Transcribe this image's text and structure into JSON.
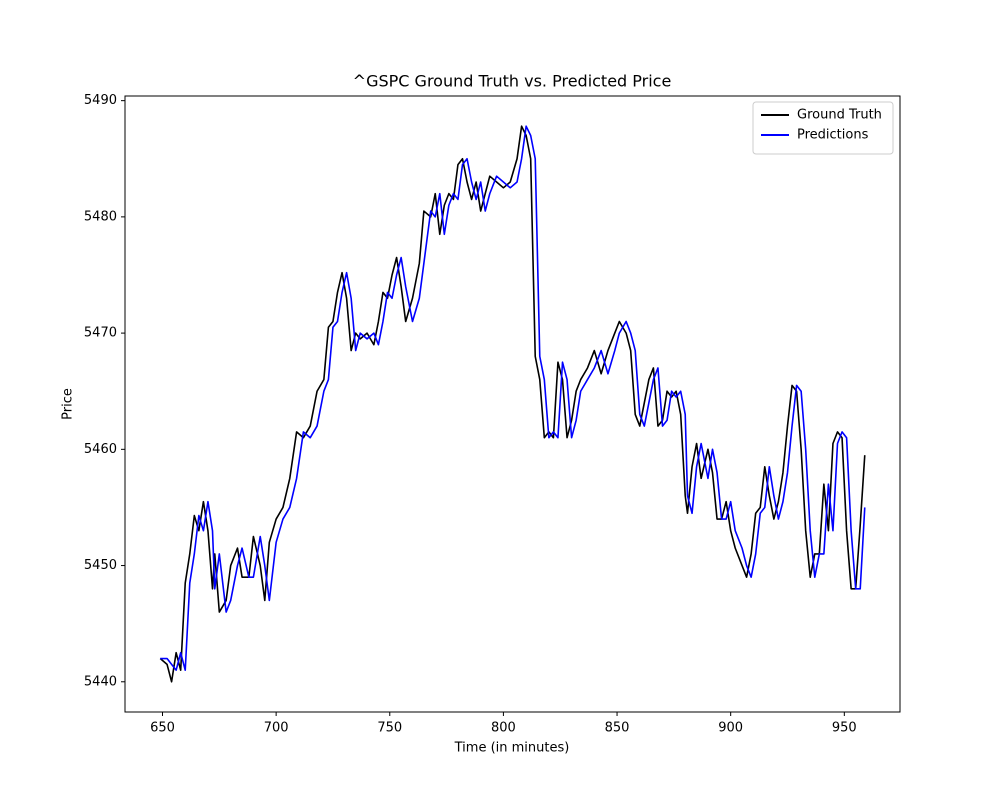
{
  "chart_data": {
    "type": "line",
    "title": "^GSPC Ground Truth vs. Predicted Price",
    "x_label": "Time (in minutes)",
    "y_label": "Price",
    "x": [
      649,
      652,
      654,
      656,
      658,
      660,
      662,
      664,
      666,
      668,
      670,
      672,
      673,
      675,
      678,
      680,
      683,
      685,
      688,
      690,
      693,
      695,
      697,
      700,
      703,
      706,
      709,
      712,
      715,
      718,
      721,
      723,
      725,
      727,
      729,
      731,
      733,
      735,
      737,
      740,
      743,
      745,
      747,
      749,
      751,
      753,
      755,
      757,
      760,
      763,
      765,
      768,
      770,
      772,
      774,
      776,
      778,
      780,
      782,
      784,
      786,
      788,
      790,
      792,
      794,
      797,
      800,
      803,
      806,
      808,
      810,
      812,
      814,
      816,
      818,
      820,
      822,
      824,
      826,
      828,
      830,
      832,
      834,
      837,
      840,
      843,
      846,
      849,
      851,
      854,
      856,
      858,
      860,
      862,
      864,
      866,
      868,
      870,
      872,
      874,
      876,
      878,
      880,
      881,
      883,
      885,
      887,
      890,
      892,
      894,
      896,
      898,
      900,
      902,
      905,
      907,
      909,
      911,
      913,
      915,
      917,
      919,
      921,
      923,
      925,
      927,
      929,
      931,
      933,
      935,
      937,
      939,
      941,
      943,
      945,
      947,
      949,
      951,
      953,
      955,
      957,
      959
    ],
    "series": [
      {
        "name": "Ground Truth",
        "color": "#000000",
        "values": [
          5442,
          5441.5,
          5440,
          5442.5,
          5441,
          5448.5,
          5451,
          5454.3,
          5453,
          5455.5,
          5453,
          5448,
          5451,
          5446,
          5447,
          5450,
          5451.5,
          5449,
          5449,
          5452.5,
          5450,
          5447,
          5452,
          5454,
          5455,
          5457.5,
          5461.5,
          5461,
          5462,
          5465,
          5466,
          5470.5,
          5471,
          5473.5,
          5475.2,
          5473,
          5468.5,
          5470,
          5469.5,
          5470,
          5469,
          5471,
          5473.5,
          5473,
          5475,
          5476.5,
          5474,
          5471,
          5473,
          5476,
          5480.5,
          5480,
          5482,
          5478.5,
          5481,
          5482,
          5481.5,
          5484.5,
          5485,
          5483,
          5481.5,
          5483,
          5480.5,
          5482,
          5483.5,
          5483,
          5482.5,
          5483,
          5485,
          5487.8,
          5487,
          5485,
          5468,
          5466,
          5461,
          5461.5,
          5461,
          5467.5,
          5466,
          5461,
          5462.5,
          5465,
          5466,
          5467,
          5468.5,
          5466.5,
          5468.5,
          5470,
          5471,
          5470,
          5468.5,
          5463,
          5462,
          5464,
          5466,
          5467,
          5462,
          5462.5,
          5465,
          5464.5,
          5465,
          5463,
          5456,
          5454.5,
          5458.5,
          5460.5,
          5457.5,
          5460,
          5458,
          5454,
          5454,
          5455.5,
          5453,
          5451.5,
          5450,
          5449,
          5451,
          5454.5,
          5455,
          5458.5,
          5456,
          5454,
          5455.5,
          5458,
          5462,
          5465.5,
          5465,
          5460,
          5453,
          5449,
          5451,
          5451,
          5457,
          5453,
          5460.5,
          5461.5,
          5461,
          5453,
          5448,
          5448,
          5453.5,
          5459.5
        ]
      },
      {
        "name": "Predictions",
        "color": "#0000ff",
        "values": [
          5442,
          5442,
          5441.5,
          5441,
          5442.5,
          5441,
          5448.5,
          5451,
          5454.3,
          5453,
          5455.5,
          5453,
          5448,
          5451,
          5446,
          5447,
          5450,
          5451.5,
          5449,
          5449,
          5452.5,
          5450,
          5447,
          5452,
          5454,
          5455,
          5457.5,
          5461.5,
          5461,
          5462,
          5465,
          5466,
          5470.5,
          5471,
          5473.5,
          5475.2,
          5473,
          5468.5,
          5470,
          5469.5,
          5470,
          5469,
          5471,
          5473.5,
          5473,
          5475,
          5476.5,
          5474,
          5471,
          5473,
          5476,
          5480.5,
          5480,
          5482,
          5478.5,
          5481,
          5482,
          5481.5,
          5484.5,
          5485,
          5483,
          5481.5,
          5483,
          5480.5,
          5482,
          5483.5,
          5483,
          5482.5,
          5483,
          5485,
          5487.8,
          5487,
          5485,
          5468,
          5466,
          5461,
          5461.5,
          5461,
          5467.5,
          5466,
          5461,
          5462.5,
          5465,
          5466,
          5467,
          5468.5,
          5466.5,
          5468.5,
          5470,
          5471,
          5470,
          5468.5,
          5463,
          5462,
          5464,
          5466,
          5467,
          5462,
          5462.5,
          5465,
          5464.5,
          5465,
          5463,
          5456,
          5454.5,
          5458.5,
          5460.5,
          5457.5,
          5460,
          5458,
          5454,
          5454,
          5455.5,
          5453,
          5451.5,
          5450,
          5449,
          5451,
          5454.5,
          5455,
          5458.5,
          5456,
          5454,
          5455.5,
          5458,
          5462,
          5465.5,
          5465,
          5460,
          5453,
          5449,
          5451,
          5451,
          5457,
          5453,
          5460.5,
          5461.5,
          5461,
          5453,
          5448,
          5448,
          5455
        ]
      }
    ],
    "xlim": [
      633.5,
      974.5
    ],
    "xticks": [
      650,
      700,
      750,
      800,
      850,
      900,
      950
    ],
    "ylim": [
      5437.4,
      5490.4
    ],
    "yticks": [
      5440,
      5450,
      5460,
      5470,
      5480,
      5490
    ],
    "legend": "upper right"
  }
}
